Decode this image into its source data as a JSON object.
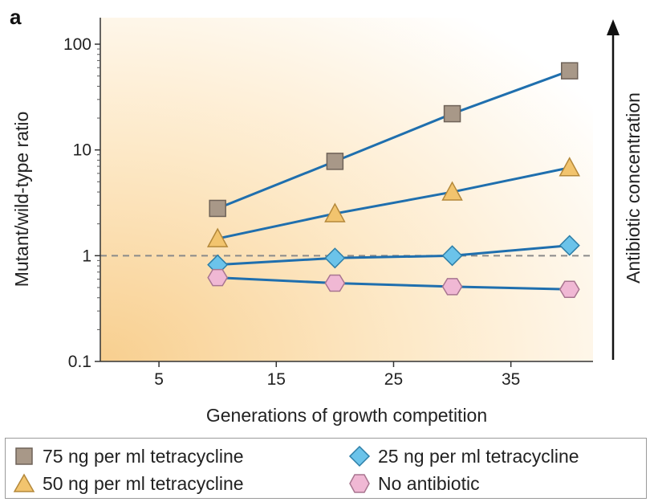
{
  "panel_label": "a",
  "chart_data": {
    "type": "line",
    "xlabel": "Generations of growth competition",
    "ylabel": "Mutant/wild-type ratio",
    "right_label": "Antibiotic concentration",
    "xlim": [
      0,
      42
    ],
    "ylim": [
      0.1,
      100
    ],
    "y_scale": "log",
    "x_ticks": [
      5,
      15,
      25,
      35
    ],
    "y_ticks": [
      0.1,
      1,
      10,
      100
    ],
    "y_tick_labels": [
      "0.1",
      "1",
      "10",
      "100"
    ],
    "reference_line": 1,
    "legend_position": "bottom",
    "x": [
      10,
      20,
      30,
      40
    ],
    "series": [
      {
        "name": "75 ng per ml tetracycline",
        "marker": "square",
        "values": [
          2.8,
          7.8,
          22,
          56
        ],
        "color": "#a89888"
      },
      {
        "name": "50 ng per ml tetracycline",
        "marker": "triangle",
        "values": [
          1.45,
          2.5,
          4.0,
          6.8
        ],
        "color": "#f2c46e"
      },
      {
        "name": "25 ng per ml tetracycline",
        "marker": "diamond",
        "values": [
          0.82,
          0.95,
          1.0,
          1.25
        ],
        "color": "#6bc3ea"
      },
      {
        "name": "No antibiotic",
        "marker": "hexagon",
        "values": [
          0.62,
          0.55,
          0.51,
          0.48
        ],
        "color": "#f0b8d4"
      }
    ],
    "line_color": "#1f6fae"
  }
}
